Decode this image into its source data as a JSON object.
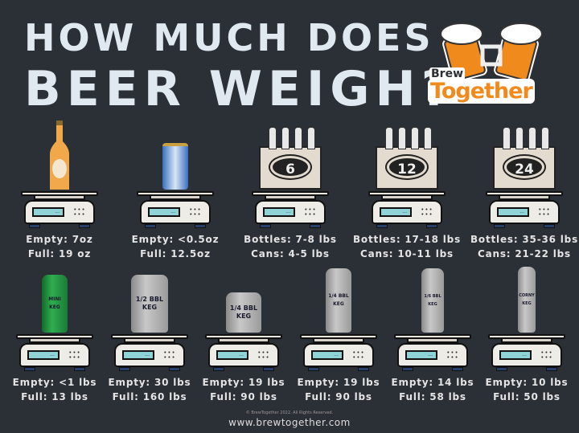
{
  "title": {
    "line1": "HOW MUCH DOES",
    "line2": "BEER WEIGH?"
  },
  "logo": {
    "word1": "Brew",
    "word2": "Together",
    "colors": {
      "orange": "#f08a1c",
      "dark": "#2b2f36"
    }
  },
  "scale_display": "...",
  "top_row": [
    {
      "object": "beer-bottle",
      "line1": "Empty: 7oz",
      "line2": "Full: 19 oz"
    },
    {
      "object": "beer-can",
      "line1": "Empty: <0.5oz",
      "line2": "Full: 12.5oz"
    },
    {
      "object": "pack",
      "pack_number": "6",
      "line1": "Bottles: 7-8 lbs",
      "line2": "Cans: 4-5 lbs"
    },
    {
      "object": "pack",
      "pack_number": "12",
      "line1": "Bottles: 17-18 lbs",
      "line2": "Cans: 10-11 lbs"
    },
    {
      "object": "pack",
      "pack_number": "24",
      "line1": "Bottles: 35-36 lbs",
      "line2": "Cans: 21-22 lbs"
    }
  ],
  "bottom_row": [
    {
      "object": "mini-keg",
      "keg_label": "MINI\nKEG",
      "line1": "Empty: <1 lbs",
      "line2": "Full: 13 lbs"
    },
    {
      "object": "half-barrel-keg",
      "keg_label": "1/2 BBL\nKEG",
      "line1": "Empty: 30 lbs",
      "line2": "Full: 160 lbs"
    },
    {
      "object": "quarter-barrel-keg",
      "keg_label": "1/4 BBL\nKEG",
      "line1": "Empty: 19 lbs",
      "line2": "Full: 90 lbs"
    },
    {
      "object": "slim-quarter-keg",
      "keg_label": "1/4 BBL\nKEG",
      "line1": "Empty: 19 lbs",
      "line2": "Full: 90 lbs"
    },
    {
      "object": "sixth-barrel-keg",
      "keg_label": "1/6 BBL\nKEG",
      "line1": "Empty: 14 lbs",
      "line2": "Full: 58 lbs"
    },
    {
      "object": "corny-keg",
      "keg_label": "CORNY\nKEG",
      "line1": "Empty: 10 lbs",
      "line2": "Full: 50 lbs"
    }
  ],
  "footer": {
    "copyright": "© BrewTogether 2022. All Rights Reserved.",
    "url": "www.brewtogether.com"
  }
}
